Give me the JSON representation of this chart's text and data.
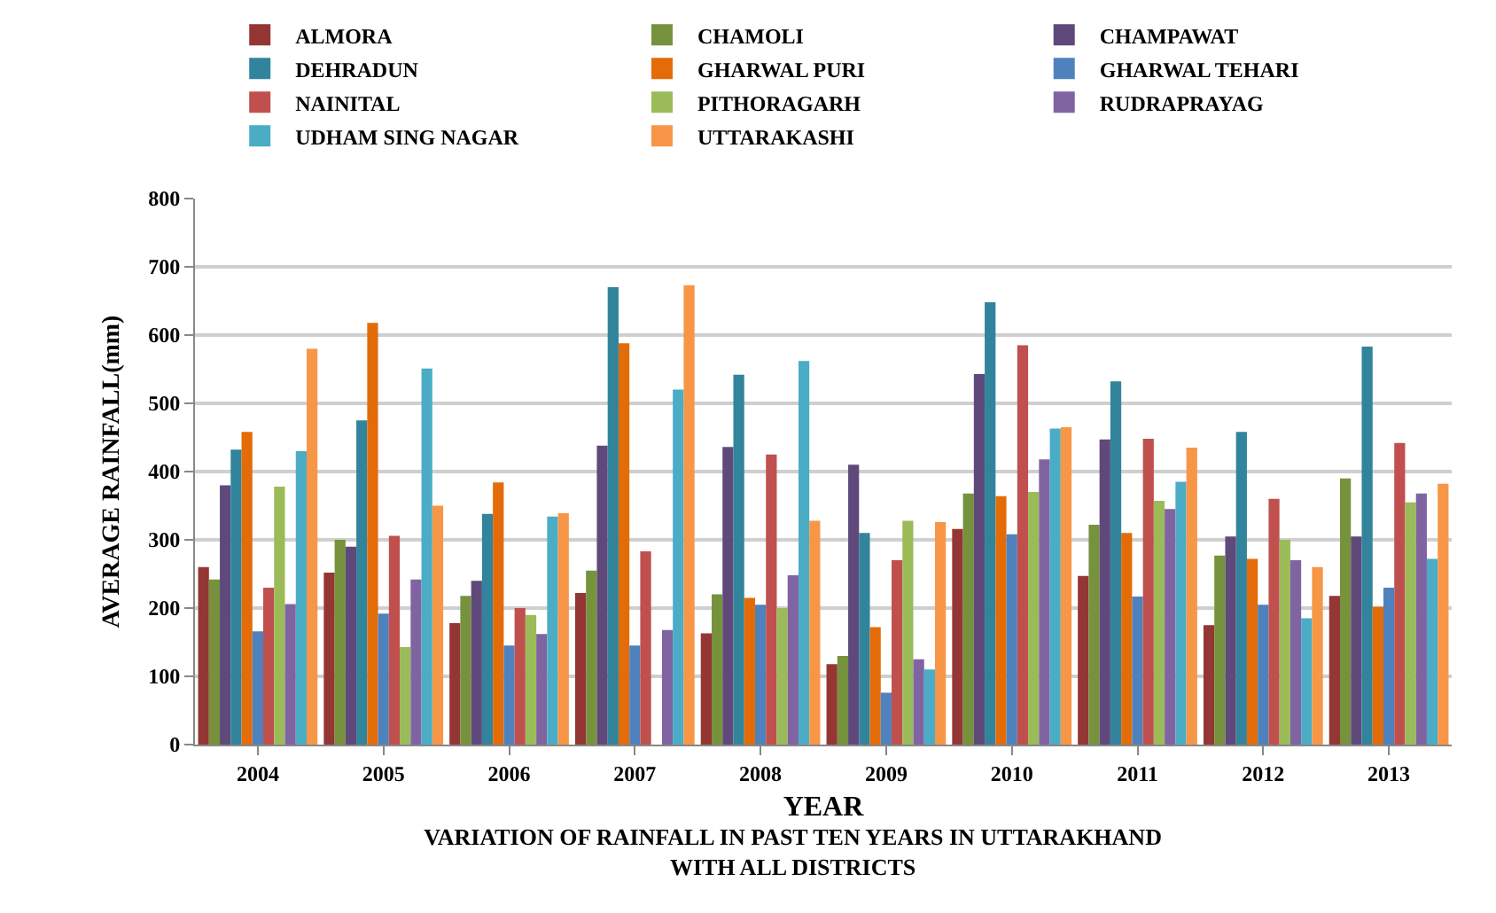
{
  "chart_data": {
    "type": "bar",
    "title": "VARIATION OF RAINFALL IN PAST TEN YEARS IN UTTARAKHAND\nWITH ALL DISTRICTS",
    "xlabel": "YEAR",
    "ylabel": "AVERAGE RAINFALL(mm)",
    "categories": [
      "2004",
      "2005",
      "2006",
      "2007",
      "2008",
      "2009",
      "2010",
      "2011",
      "2012",
      "2013"
    ],
    "series": [
      {
        "name": "ALMORA",
        "color": "#943634",
        "values": [
          260,
          252,
          178,
          222,
          163,
          118,
          316,
          247,
          175,
          218
        ]
      },
      {
        "name": "CHAMOLI",
        "color": "#76923c",
        "values": [
          242,
          300,
          218,
          255,
          220,
          130,
          368,
          322,
          277,
          390
        ]
      },
      {
        "name": "CHAMPAWAT",
        "color": "#5f497a",
        "values": [
          380,
          290,
          240,
          438,
          436,
          410,
          543,
          447,
          305,
          305
        ]
      },
      {
        "name": "DEHRADUN",
        "color": "#31849b",
        "values": [
          432,
          475,
          338,
          670,
          542,
          310,
          648,
          532,
          458,
          583
        ]
      },
      {
        "name": "GHARWAL PURI",
        "color": "#e36c09",
        "values": [
          458,
          618,
          384,
          588,
          215,
          172,
          364,
          310,
          272,
          202
        ]
      },
      {
        "name": "GHARWAL TEHARI",
        "color": "#4f81bd",
        "values": [
          166,
          192,
          145,
          145,
          205,
          76,
          308,
          217,
          205,
          230
        ]
      },
      {
        "name": "NAINITAL",
        "color": "#c0504d",
        "values": [
          230,
          306,
          200,
          283,
          425,
          270,
          585,
          448,
          360,
          442
        ]
      },
      {
        "name": "PITHORAGARH",
        "color": "#9bbb59",
        "values": [
          378,
          143,
          190,
          null,
          200,
          328,
          370,
          357,
          300,
          355
        ]
      },
      {
        "name": "RUDRAPRAYAG",
        "color": "#8064a2",
        "values": [
          206,
          242,
          162,
          168,
          248,
          125,
          418,
          345,
          270,
          368
        ]
      },
      {
        "name": "UDHAM SING NAGAR",
        "color": "#4bacc6",
        "values": [
          430,
          551,
          334,
          520,
          562,
          110,
          463,
          385,
          185,
          272
        ]
      },
      {
        "name": "UTTARAKASHI",
        "color": "#f79646",
        "values": [
          580,
          350,
          339,
          673,
          328,
          326,
          465,
          435,
          260,
          382
        ]
      }
    ],
    "ylim": [
      0,
      800
    ],
    "yticks": [
      0,
      100,
      200,
      300,
      400,
      500,
      600,
      700,
      800
    ],
    "grid": "y",
    "legend": "top"
  }
}
